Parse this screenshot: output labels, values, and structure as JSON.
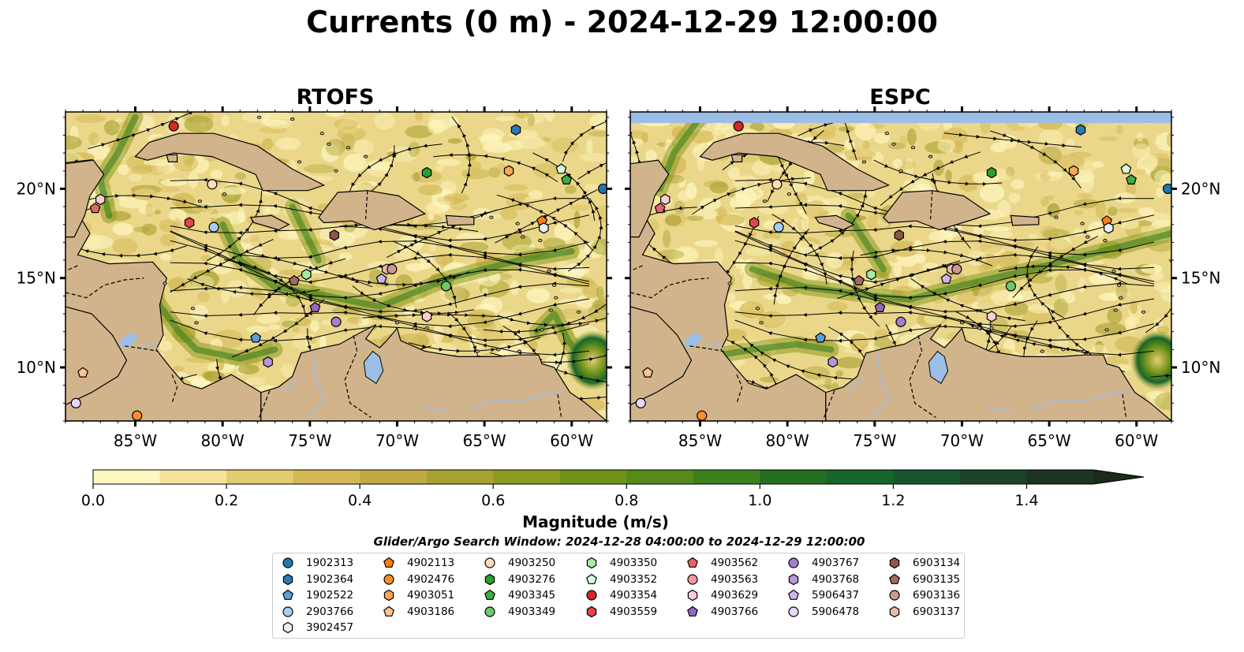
{
  "title": "Currents (0 m) - 2024-12-29 12:00:00",
  "panels": [
    {
      "name": "RTOFS"
    },
    {
      "name": "ESPC"
    }
  ],
  "axes": {
    "x_ticks": [
      "85°W",
      "80°W",
      "75°W",
      "70°W",
      "65°W",
      "60°W"
    ],
    "y_ticks": [
      "20°N",
      "15°N",
      "10°N"
    ],
    "lon_range": [
      -89,
      -58
    ],
    "lat_range": [
      7,
      24.3
    ]
  },
  "colorbar": {
    "label": "Magnitude (m/s)",
    "ticks": [
      "0.0",
      "0.2",
      "0.4",
      "0.6",
      "0.8",
      "1.0",
      "1.2",
      "1.4"
    ],
    "range": [
      0,
      1.5
    ],
    "extend": "max",
    "colors": [
      "#fff7c0",
      "#f3e49a",
      "#e3cc71",
      "#d3b855",
      "#c1aa43",
      "#a9a232",
      "#8c9b21",
      "#6f9219",
      "#568a1a",
      "#3c7f1e",
      "#246f22",
      "#17652c",
      "#18552f",
      "#1b432a",
      "#1d3423",
      "#1b2a1b"
    ]
  },
  "search_window": "Glider/Argo Search Window: 2024-12-28 04:00:00 to 2024-12-29 12:00:00",
  "colors": {
    "land": "#d2b48c",
    "water_body": "#9ebfe5",
    "nodata_band": "#9bbde6"
  },
  "legend": [
    {
      "id": "1902313",
      "marker": "circle",
      "color": "#1f77b4"
    },
    {
      "id": "1902364",
      "marker": "hexagon",
      "color": "#2a7ab8"
    },
    {
      "id": "1902522",
      "marker": "pentagon",
      "color": "#5aa0d8"
    },
    {
      "id": "2903766",
      "marker": "circle",
      "color": "#a5cff0"
    },
    {
      "id": "3902457",
      "marker": "hexagon",
      "color": "#e2f0fb"
    },
    {
      "id": "4902113",
      "marker": "pentagon",
      "color": "#ff7f0e"
    },
    {
      "id": "4902476",
      "marker": "circle",
      "color": "#ff8c2a"
    },
    {
      "id": "4903051",
      "marker": "hexagon",
      "color": "#ffa44f"
    },
    {
      "id": "4903186",
      "marker": "pentagon",
      "color": "#ffc58f"
    },
    {
      "id": "4903250",
      "marker": "circle",
      "color": "#ffdcbc"
    },
    {
      "id": "4903276",
      "marker": "hexagon",
      "color": "#2ca02c"
    },
    {
      "id": "4903345",
      "marker": "pentagon",
      "color": "#3fae3f"
    },
    {
      "id": "4903349",
      "marker": "circle",
      "color": "#6cc96c"
    },
    {
      "id": "4903350",
      "marker": "hexagon",
      "color": "#a6e8a6"
    },
    {
      "id": "4903352",
      "marker": "pentagon",
      "color": "#d8f8d8"
    },
    {
      "id": "4903354",
      "marker": "circle",
      "color": "#d62728"
    },
    {
      "id": "4903559",
      "marker": "hexagon",
      "color": "#e0464a"
    },
    {
      "id": "4903562",
      "marker": "pentagon",
      "color": "#e9636b"
    },
    {
      "id": "4903563",
      "marker": "circle",
      "color": "#f19aa0"
    },
    {
      "id": "4903629",
      "marker": "hexagon",
      "color": "#fbcdd2"
    },
    {
      "id": "4903766",
      "marker": "pentagon",
      "color": "#9467bd"
    },
    {
      "id": "4903767",
      "marker": "circle",
      "color": "#a47fcb"
    },
    {
      "id": "4903768",
      "marker": "hexagon",
      "color": "#b797dc"
    },
    {
      "id": "5906437",
      "marker": "pentagon",
      "color": "#cdb5ec"
    },
    {
      "id": "5906478",
      "marker": "circle",
      "color": "#e7d6f8"
    },
    {
      "id": "6903134",
      "marker": "hexagon",
      "color": "#8c564b"
    },
    {
      "id": "6903135",
      "marker": "pentagon",
      "color": "#a26b5f"
    },
    {
      "id": "6903136",
      "marker": "circle",
      "color": "#c99a8f"
    },
    {
      "id": "6903137",
      "marker": "hexagon",
      "color": "#e6b9aa"
    }
  ],
  "floats": [
    {
      "lon": -82.8,
      "lat": 23.5,
      "id": "4903354"
    },
    {
      "lon": -63.2,
      "lat": 23.3,
      "id": "1902364"
    },
    {
      "lon": -60.6,
      "lat": 21.1,
      "id": "4903352"
    },
    {
      "lon": -60.3,
      "lat": 20.5,
      "id": "4903345"
    },
    {
      "lon": -68.3,
      "lat": 20.9,
      "id": "4903276"
    },
    {
      "lon": -63.6,
      "lat": 21.0,
      "id": "4903051"
    },
    {
      "lon": -58.2,
      "lat": 20.0,
      "id": "1902313"
    },
    {
      "lon": -80.6,
      "lat": 20.25,
      "id": "4903250"
    },
    {
      "lon": -87.0,
      "lat": 19.4,
      "id": "4903629"
    },
    {
      "lon": -87.3,
      "lat": 18.9,
      "id": "4903562"
    },
    {
      "lon": -81.9,
      "lat": 18.1,
      "id": "4903559"
    },
    {
      "lon": -80.5,
      "lat": 17.85,
      "id": "2903766"
    },
    {
      "lon": -61.7,
      "lat": 18.2,
      "id": "4902113"
    },
    {
      "lon": -61.6,
      "lat": 17.8,
      "id": "3902457"
    },
    {
      "lon": -73.6,
      "lat": 17.4,
      "id": "6903134"
    },
    {
      "lon": -75.2,
      "lat": 15.2,
      "id": "4903350"
    },
    {
      "lon": -75.9,
      "lat": 14.85,
      "id": "6903135"
    },
    {
      "lon": -70.9,
      "lat": 14.95,
      "id": "5906437"
    },
    {
      "lon": -70.6,
      "lat": 15.5,
      "id": "6903137"
    },
    {
      "lon": -70.3,
      "lat": 15.5,
      "id": "6903136"
    },
    {
      "lon": -67.2,
      "lat": 14.55,
      "id": "4903349"
    },
    {
      "lon": -74.7,
      "lat": 13.35,
      "id": "4903766"
    },
    {
      "lon": -73.5,
      "lat": 12.55,
      "id": "4903767"
    },
    {
      "lon": -68.3,
      "lat": 12.85,
      "id": "4903629"
    },
    {
      "lon": -78.1,
      "lat": 11.65,
      "id": "1902522"
    },
    {
      "lon": -77.4,
      "lat": 10.3,
      "id": "4903768"
    },
    {
      "lon": -88.0,
      "lat": 9.7,
      "id": "4903186"
    },
    {
      "lon": -88.4,
      "lat": 8.0,
      "id": "5906478"
    },
    {
      "lon": -84.9,
      "lat": 7.3,
      "id": "4902476"
    }
  ]
}
